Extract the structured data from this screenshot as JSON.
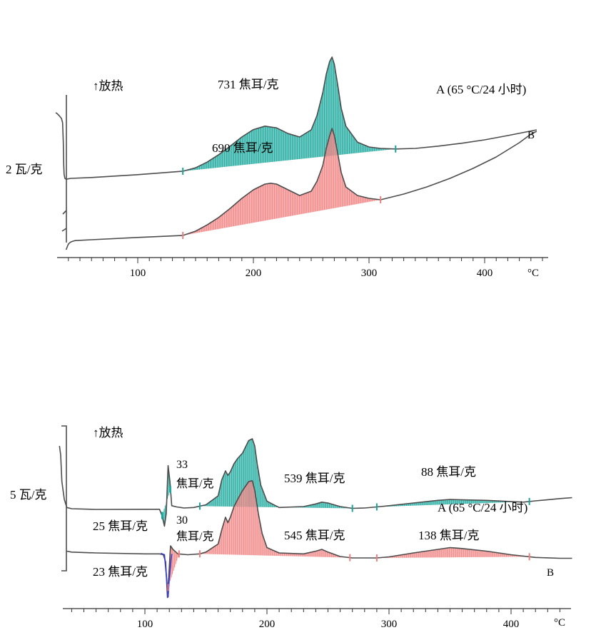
{
  "chart_data": [
    {
      "type": "line",
      "x_unit": "°C",
      "xlim": [
        30,
        450
      ],
      "x_ticks": [
        100,
        200,
        300,
        400
      ],
      "y_scale_label": "2 瓦/克",
      "exo_label": "↑放热",
      "colors": {
        "A": "#17a79a",
        "B": "#f07f7f",
        "line": "#4d4d4d"
      },
      "series": [
        {
          "name": "A (65 °C/24 小时)",
          "endpoint_label": "A (65 °C/24 小时)",
          "fill_color": "#17a79a",
          "x": [
            29,
            30,
            32,
            34,
            35,
            35.6,
            36,
            36.3,
            37,
            38,
            42,
            60,
            100,
            139,
            150,
            160,
            170,
            180,
            190,
            200,
            210,
            220,
            230,
            240,
            250,
            255,
            260,
            263,
            266,
            268,
            270,
            273,
            276,
            280,
            290,
            300,
            310,
            323,
            340,
            360,
            380,
            400,
            420,
            445
          ],
          "y": [
            0.55,
            0.53,
            0.45,
            0.35,
            0.2,
            -0.5,
            -1.3,
            -1.6,
            -1.75,
            -1.78,
            -1.75,
            -1.72,
            -1.62,
            -1.5,
            -1.38,
            -1.18,
            -0.92,
            -0.62,
            -0.3,
            -0.04,
            0.08,
            0.02,
            -0.18,
            -0.3,
            -0.05,
            0.45,
            1.25,
            1.9,
            2.35,
            2.5,
            2.25,
            1.5,
            0.7,
            0.08,
            -0.48,
            -0.65,
            -0.7,
            -0.72,
            -0.7,
            -0.62,
            -0.52,
            -0.4,
            -0.25,
            -0.05
          ],
          "peak_area": {
            "label": "731 焦耳/克",
            "value": 731,
            "unit": "焦耳/克",
            "x_start": 139,
            "x_end": 323
          }
        },
        {
          "name": "B",
          "endpoint_label": "B",
          "fill_color": "#f07f7f",
          "x": [
            38,
            40,
            42,
            44,
            46,
            60,
            100,
            139,
            150,
            160,
            170,
            180,
            190,
            200,
            210,
            215,
            220,
            230,
            240,
            250,
            255,
            260,
            263,
            266,
            268,
            270,
            273,
            276,
            280,
            290,
            300,
            310,
            330,
            350,
            370,
            390,
            410,
            430,
            440,
            445
          ],
          "y": [
            -4.25,
            -4.05,
            -3.98,
            -3.95,
            -3.93,
            -3.9,
            -3.82,
            -3.75,
            -3.6,
            -3.38,
            -3.12,
            -2.8,
            -2.45,
            -2.15,
            -1.95,
            -1.92,
            -1.95,
            -2.15,
            -2.35,
            -2.2,
            -1.85,
            -1.3,
            -0.7,
            -0.25,
            0.0,
            -0.25,
            -0.9,
            -1.55,
            -2.05,
            -2.35,
            -2.45,
            -2.5,
            -2.3,
            -2.05,
            -1.75,
            -1.4,
            -1.0,
            -0.5,
            -0.2,
            -0.1
          ],
          "peak_area": {
            "label": "690 焦耳/克",
            "value": 690,
            "unit": "焦耳/克",
            "x_start": 139,
            "x_end": 310
          }
        }
      ]
    },
    {
      "type": "line",
      "x_unit": "°C",
      "xlim": [
        30,
        450
      ],
      "x_ticks": [
        100,
        200,
        300,
        400
      ],
      "y_scale_label": "5 瓦/克",
      "exo_label": "↑放热",
      "colors": {
        "A": "#17a79a",
        "B": "#f07f7f",
        "blue": "#3a3ad0",
        "line": "#4d4d4d"
      },
      "series": [
        {
          "name": "A (65 °C/24 小时)",
          "endpoint_label": "A (65 °C/24 小时)",
          "fill_color": "#17a79a",
          "x": [
            30,
            31,
            32,
            34,
            36,
            40,
            60,
            100,
            112,
            114,
            116,
            117.5,
            119,
            120.5,
            122,
            126,
            132,
            140,
            150,
            160,
            163,
            166,
            168,
            170,
            173,
            176,
            180,
            185,
            188,
            190,
            192,
            195,
            200,
            210,
            230,
            240,
            245,
            250,
            260,
            270,
            280,
            290,
            300,
            320,
            340,
            350,
            360,
            380,
            410,
            420,
            440,
            450
          ],
          "y": [
            3.0,
            2.5,
            1.0,
            0.0,
            -0.45,
            -0.52,
            -0.56,
            -0.55,
            -0.55,
            -0.9,
            -1.5,
            -0.8,
            1.9,
            1.0,
            -0.35,
            -0.42,
            -0.48,
            -0.45,
            -0.3,
            0.2,
            1.1,
            1.6,
            1.35,
            1.55,
            2.0,
            2.3,
            2.6,
            3.3,
            3.4,
            3.0,
            2.0,
            0.8,
            -0.1,
            -0.45,
            -0.4,
            -0.25,
            -0.15,
            -0.2,
            -0.4,
            -0.5,
            -0.48,
            -0.42,
            -0.35,
            -0.2,
            -0.05,
            0.0,
            -0.02,
            -0.05,
            -0.15,
            -0.08,
            0.05,
            0.1
          ],
          "peak_areas": [
            {
              "label": "33 焦耳/克",
              "lines": [
                "33",
                "焦耳/克"
              ],
              "value": 33,
              "unit": "焦耳/克",
              "x_start": 114,
              "x_end": 121
            },
            {
              "label": "539 焦耳/克",
              "value": 539,
              "unit": "焦耳/克",
              "x_start": 145,
              "x_end": 270
            },
            {
              "label": "88 焦耳/克",
              "value": 88,
              "unit": "焦耳/克",
              "x_start": 290,
              "x_end": 415
            }
          ]
        },
        {
          "name": "B",
          "endpoint_label": "B",
          "fill_color": "#f07f7f",
          "x": [
            36,
            40,
            60,
            100,
            112,
            115,
            117,
            118.5,
            120,
            121,
            123,
            127,
            135,
            145,
            150,
            160,
            163,
            166,
            168,
            170,
            173,
            176,
            180,
            185,
            188,
            190,
            193,
            196,
            200,
            210,
            230,
            240,
            245,
            250,
            260,
            270,
            290,
            300,
            320,
            340,
            350,
            360,
            380,
            400,
            420,
            440,
            450
          ],
          "y": [
            -2.9,
            -2.95,
            -3.0,
            -3.05,
            -3.05,
            -3.1,
            -3.5,
            -5.5,
            -3.8,
            -2.6,
            -2.8,
            -3.05,
            -3.1,
            -3.05,
            -2.95,
            -2.5,
            -1.7,
            -1.0,
            -1.3,
            -1.0,
            -0.4,
            0.0,
            0.5,
            1.0,
            1.05,
            0.5,
            -0.8,
            -1.9,
            -2.7,
            -3.0,
            -3.05,
            -2.9,
            -2.8,
            -2.95,
            -3.2,
            -3.28,
            -3.28,
            -3.22,
            -3.0,
            -2.8,
            -2.7,
            -2.75,
            -2.9,
            -3.1,
            -3.25,
            -3.3,
            -3.3
          ],
          "peak_areas": [
            {
              "label": "30 焦耳/克",
              "lines": [
                "30",
                "焦耳/克"
              ],
              "value": 30,
              "unit": "焦耳/克",
              "x_start": 119,
              "x_end": 128
            },
            {
              "label": "545 焦耳/克",
              "value": 545,
              "unit": "焦耳/克",
              "x_start": 145,
              "x_end": 268
            },
            {
              "label": "138 焦耳/克",
              "value": 138,
              "unit": "焦耳/克",
              "x_start": 290,
              "x_end": 415
            }
          ]
        }
      ],
      "blue_endotherm": {
        "x": [
          113,
          116,
          118,
          119,
          120,
          122
        ],
        "y": [
          -3.02,
          -3.1,
          -4.6,
          -5.5,
          -4.4,
          -3.05
        ]
      },
      "endotherm_labels": [
        {
          "label": "25 焦耳/克",
          "value": 25,
          "unit": "焦耳/克"
        },
        {
          "label": "23 焦耳/克",
          "value": 23,
          "unit": "焦耳/克"
        }
      ]
    }
  ]
}
